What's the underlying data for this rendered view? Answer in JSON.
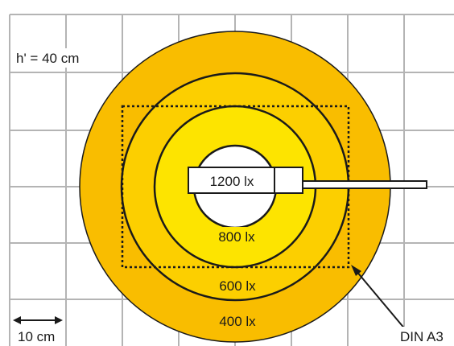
{
  "diagram": {
    "height_label": "h' = 40 cm",
    "scale_label": "10 cm",
    "paper_label": "DIN A3",
    "zones": [
      {
        "label": "1200 lx",
        "color": "#ffffff"
      },
      {
        "label": "800 lx",
        "color": "#fde400"
      },
      {
        "label": "600 lx",
        "color": "#fccf00"
      },
      {
        "label": "400 lx",
        "color": "#f9bd00"
      }
    ],
    "colors": {
      "grid": "#b4b4b4",
      "outline": "#1a1a1a",
      "background": "#ffffff"
    }
  }
}
